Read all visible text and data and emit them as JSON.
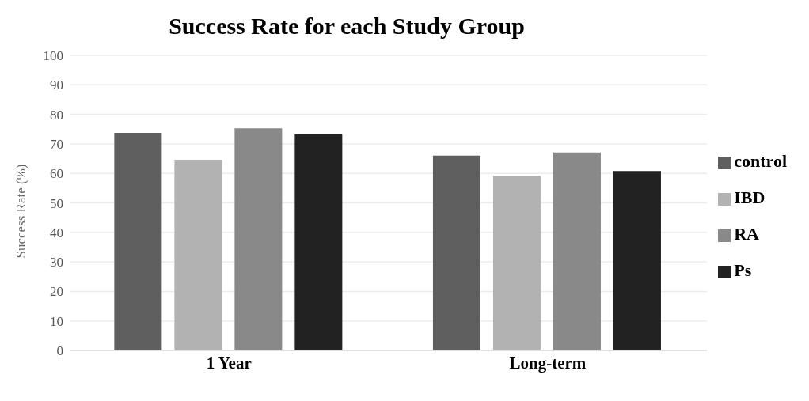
{
  "chart_data": {
    "type": "bar",
    "title": "Success Rate for each Study Group",
    "ylabel": "Success Rate (%)",
    "categories": [
      "1 Year",
      "Long-term"
    ],
    "series": [
      {
        "name": "control",
        "color": "#5f5f5f",
        "values": [
          73.7,
          66.0
        ]
      },
      {
        "name": "IBD",
        "color": "#b2b2b2",
        "values": [
          64.6,
          59.2
        ]
      },
      {
        "name": "RA",
        "color": "#898989",
        "values": [
          75.3,
          67.1
        ]
      },
      {
        "name": "Ps",
        "color": "#222222",
        "values": [
          73.2,
          60.8
        ]
      }
    ],
    "ylim": [
      0,
      100
    ],
    "yticks": [
      0,
      10,
      20,
      30,
      40,
      50,
      60,
      70,
      80,
      90,
      100
    ],
    "grid": "y",
    "legend": "right"
  }
}
